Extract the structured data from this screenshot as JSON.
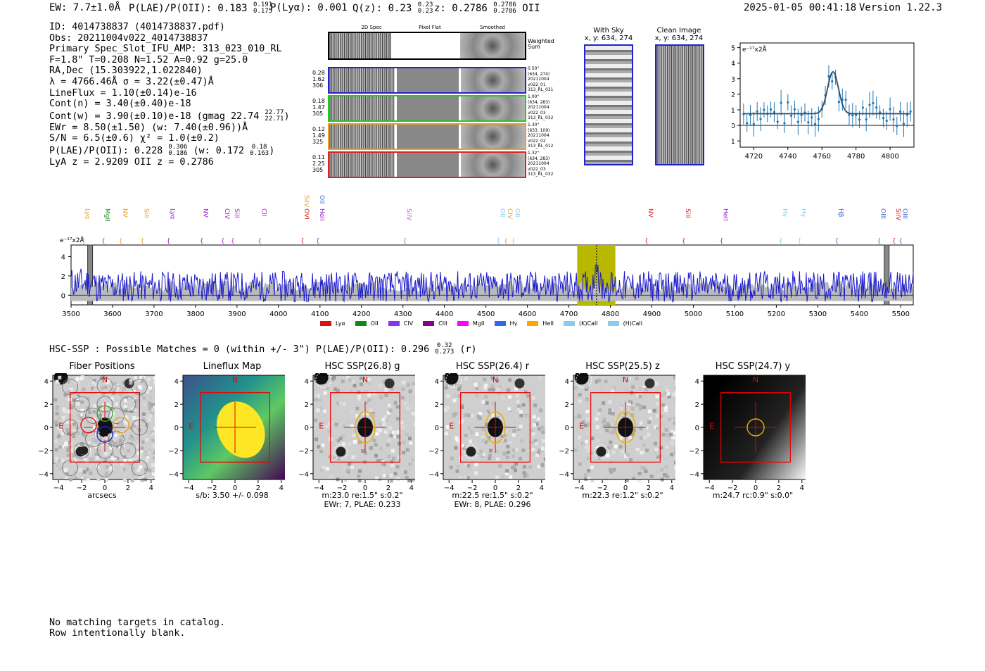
{
  "header": {
    "ew": "EW: 7.7±1.0Å",
    "plae": "P(LAE)/P(OII): 0.183",
    "plae_hi": "0.191",
    "plae_lo": "0.175",
    "plya": "P(Lyα): 0.001",
    "qz": "Q(z): 0.23",
    "qz_hi": "0.23",
    "qz_lo": "0.23",
    "z": "z: 0.2786",
    "z_hi": "0.2786",
    "z_lo": "0.2786",
    "z_line": "OII",
    "timestamp": "2025-01-05 00:41:18",
    "version": "Version 1.22.3"
  },
  "info": {
    "id": "ID: 4014738837 (4014738837.pdf)",
    "obs": "Obs: 20211004v022_4014738837",
    "primary": "Primary Spec_Slot_IFU_AMP: 313_023_010_RL",
    "params": "F=1.8\"  T=0.208  N=1.52  A=0.92  g=25.0",
    "radec": "RA,Dec (15.303922,1.022840)",
    "lambda": "λ = 4766.46Å   σ = 3.22(±0.47)Å",
    "lineflux": "LineFlux = 1.10(±0.14)e-16",
    "contn": "Cont(n) = 3.40(±0.40)e-18",
    "contw": "Cont(w) = 3.90(±0.10)e-18 (gmag 22.74",
    "contw_hi": "22.77",
    "contw_lo": "22.71",
    "contw_end": ")",
    "ewr": "EWr = 8.50(±1.50) (w: 7.40(±0.96))Å",
    "sn": "S/N = 6.5(±0.6)  χ² = 1.0(±0.2)",
    "plae2": "P(LAE)/P(OII): 0.228",
    "plae2_hi": "0.306",
    "plae2_lo": "0.186",
    "plae2_w": "(w: 0.172",
    "plae2_w_hi": "0.18",
    "plae2_w_lo": "0.163",
    "plae2_end": ")",
    "zline": "LyA z = 2.9209   OII z = 0.2786"
  },
  "cutouts": {
    "col_2d": "2D Spec",
    "col_flat": "Pixel Flat",
    "col_smooth": "Smoothed",
    "weighted_sum": "Weighted Sum",
    "rows": [
      {
        "left": [
          "0.28",
          "1.62",
          "306"
        ],
        "right": [
          "0.50\"",
          "(634, 274)",
          "20211004",
          "v022_01",
          "313_RL_031"
        ],
        "color": "#2222cc"
      },
      {
        "left": [
          "0.18",
          "1.47",
          "305"
        ],
        "right": [
          "1.00\"",
          "(634, 283)",
          "20211004",
          "v022_03",
          "313_RL_032"
        ],
        "color": "#22cc22"
      },
      {
        "left": [
          "0.12",
          "1.49",
          "325"
        ],
        "right": [
          "1.30\"",
          "(633, 109)",
          "20211004",
          "v022_02",
          "313_RL_012"
        ],
        "color": "#e8a020"
      },
      {
        "left": [
          "0.11",
          "2.25",
          "305"
        ],
        "right": [
          "1.32\"",
          "(634, 283)",
          "20211004",
          "v022_03",
          "313_RL_032"
        ],
        "color": "#dd2222"
      }
    ]
  },
  "sky": {
    "with_sky": "With Sky",
    "with_sky_xy": "x, y: 634, 274",
    "clean": "Clean Image",
    "clean_xy": "x, y: 634, 274"
  },
  "zoom_plot": {
    "ylabel": "e⁻¹⁷x2Å",
    "xticks": [
      "4720",
      "4740",
      "4760",
      "4780",
      "4800"
    ],
    "yticks": [
      "5",
      "4",
      "3",
      "2",
      "1",
      "0",
      "-1"
    ]
  },
  "spectrum": {
    "ylabel": "e⁻¹⁷x2Å",
    "xticks": [
      "3500",
      "3600",
      "3700",
      "3800",
      "3900",
      "4000",
      "4100",
      "4200",
      "4300",
      "4400",
      "4500",
      "4600",
      "4700",
      "4800",
      "4900",
      "5000",
      "5100",
      "5200",
      "5300",
      "5400",
      "5500"
    ],
    "yticks": [
      "4",
      "2",
      "0"
    ],
    "lines": [
      {
        "label": "Lyα",
        "w": 3530,
        "color": "#e8a020"
      },
      {
        "label": "MgII",
        "w": 3578,
        "color": "#228822"
      },
      {
        "label": "NV",
        "w": 3620,
        "color": "#e8a020"
      },
      {
        "label": "SiII",
        "w": 3672,
        "color": "#e8a020"
      },
      {
        "label": "Lyα",
        "w": 3735,
        "color": "#9922cc"
      },
      {
        "label": "NV",
        "w": 3815,
        "color": "#9922cc"
      },
      {
        "label": "CIV",
        "w": 3866,
        "color": "#9922cc"
      },
      {
        "label": "SiII",
        "w": 3890,
        "color": "#cc22cc"
      },
      {
        "label": "CII",
        "w": 3955,
        "color": "#cc22cc"
      },
      {
        "label": "OVI",
        "w": 4058,
        "color": "#dd2222"
      },
      {
        "label": "HeII",
        "w": 4095,
        "color": "#9922cc"
      },
      {
        "label": "SiIV",
        "w": 4305,
        "color": "#cc55cc"
      },
      {
        "label": "OII",
        "w": 4530,
        "color": "#88ccee"
      },
      {
        "label": "CIV",
        "w": 4548,
        "color": "#e8a020"
      },
      {
        "label": "OII",
        "w": 4566,
        "color": "#88ccee"
      },
      {
        "label": "NV",
        "w": 4887,
        "color": "#dd2222"
      },
      {
        "label": "SiII",
        "w": 4977,
        "color": "#dd2222"
      },
      {
        "label": "HeII",
        "w": 5068,
        "color": "#9922cc"
      },
      {
        "label": "Hγ",
        "w": 5211,
        "color": "#88ccee"
      },
      {
        "label": "Hγ",
        "w": 5256,
        "color": "#88ccee"
      },
      {
        "label": "Hβ",
        "w": 5346,
        "color": "#4466cc"
      },
      {
        "label": "OIII",
        "w": 5448,
        "color": "#4466cc"
      },
      {
        "label": "SiIV",
        "w": 5484,
        "color": "#dd2222"
      },
      {
        "label": "OIII",
        "w": 5500,
        "color": "#4466cc"
      }
    ],
    "upper_labels": [
      {
        "label": "SiIV",
        "w": 4058,
        "color": "#e8a020"
      },
      {
        "label": "OII",
        "w": 4095,
        "color": "#4466cc"
      }
    ],
    "legend": [
      {
        "label": "Lyα",
        "color": "#dd1111"
      },
      {
        "label": "OII",
        "color": "#118811"
      },
      {
        "label": "CIV",
        "color": "#8833ee"
      },
      {
        "label": "CIII",
        "color": "#880088"
      },
      {
        "label": "MgII",
        "color": "#ff00ff"
      },
      {
        "label": "Hγ",
        "color": "#3366ee"
      },
      {
        "label": "HeII",
        "color": "#ffa500"
      },
      {
        "label": "(K)CaII",
        "color": "#88ccee"
      },
      {
        "label": "(H)CaII",
        "color": "#88ccee"
      }
    ]
  },
  "hsc": {
    "summary": "HSC-SSP : Possible Matches = 0 (within +/- 3\")  P(LAE)/P(OII): 0.296",
    "summary_hi": "0.32",
    "summary_lo": "0.273",
    "summary_end": "(r)",
    "ticks_x": [
      "−4",
      "−2",
      "0",
      "2",
      "4"
    ],
    "ticks_y": [
      "4",
      "2",
      "0",
      "−2",
      "−4"
    ],
    "north": "N",
    "east": "E",
    "panels": [
      {
        "title": "Fiber Positions",
        "caption1": "arcsecs",
        "caption2": ""
      },
      {
        "title": "Lineflux Map",
        "caption1": "s/b: 3.50 +/- 0.098",
        "caption2": ""
      },
      {
        "title": "HSC SSP(26.8) g",
        "caption1": "m:23.0  re:1.5\"  s:0.2\"",
        "caption2": "EWr: 7, PLAE: 0.233"
      },
      {
        "title": "HSC SSP(26.4) r",
        "caption1": "m:22.5  re:1.5\"  s:0.2\"",
        "caption2": "EWr: 8, PLAE: 0.296"
      },
      {
        "title": "HSC SSP(25.5) z",
        "caption1": "m:22.3  re:1.2\"  s:0.2\"",
        "caption2": ""
      },
      {
        "title": "HSC SSP(24.7) y",
        "caption1": "m:24.7  rc:0.9\"  s:0.0\"",
        "caption2": ""
      }
    ]
  },
  "footer": {
    "line1": "No matching targets in catalog.",
    "line2": "Row intentionally blank."
  }
}
